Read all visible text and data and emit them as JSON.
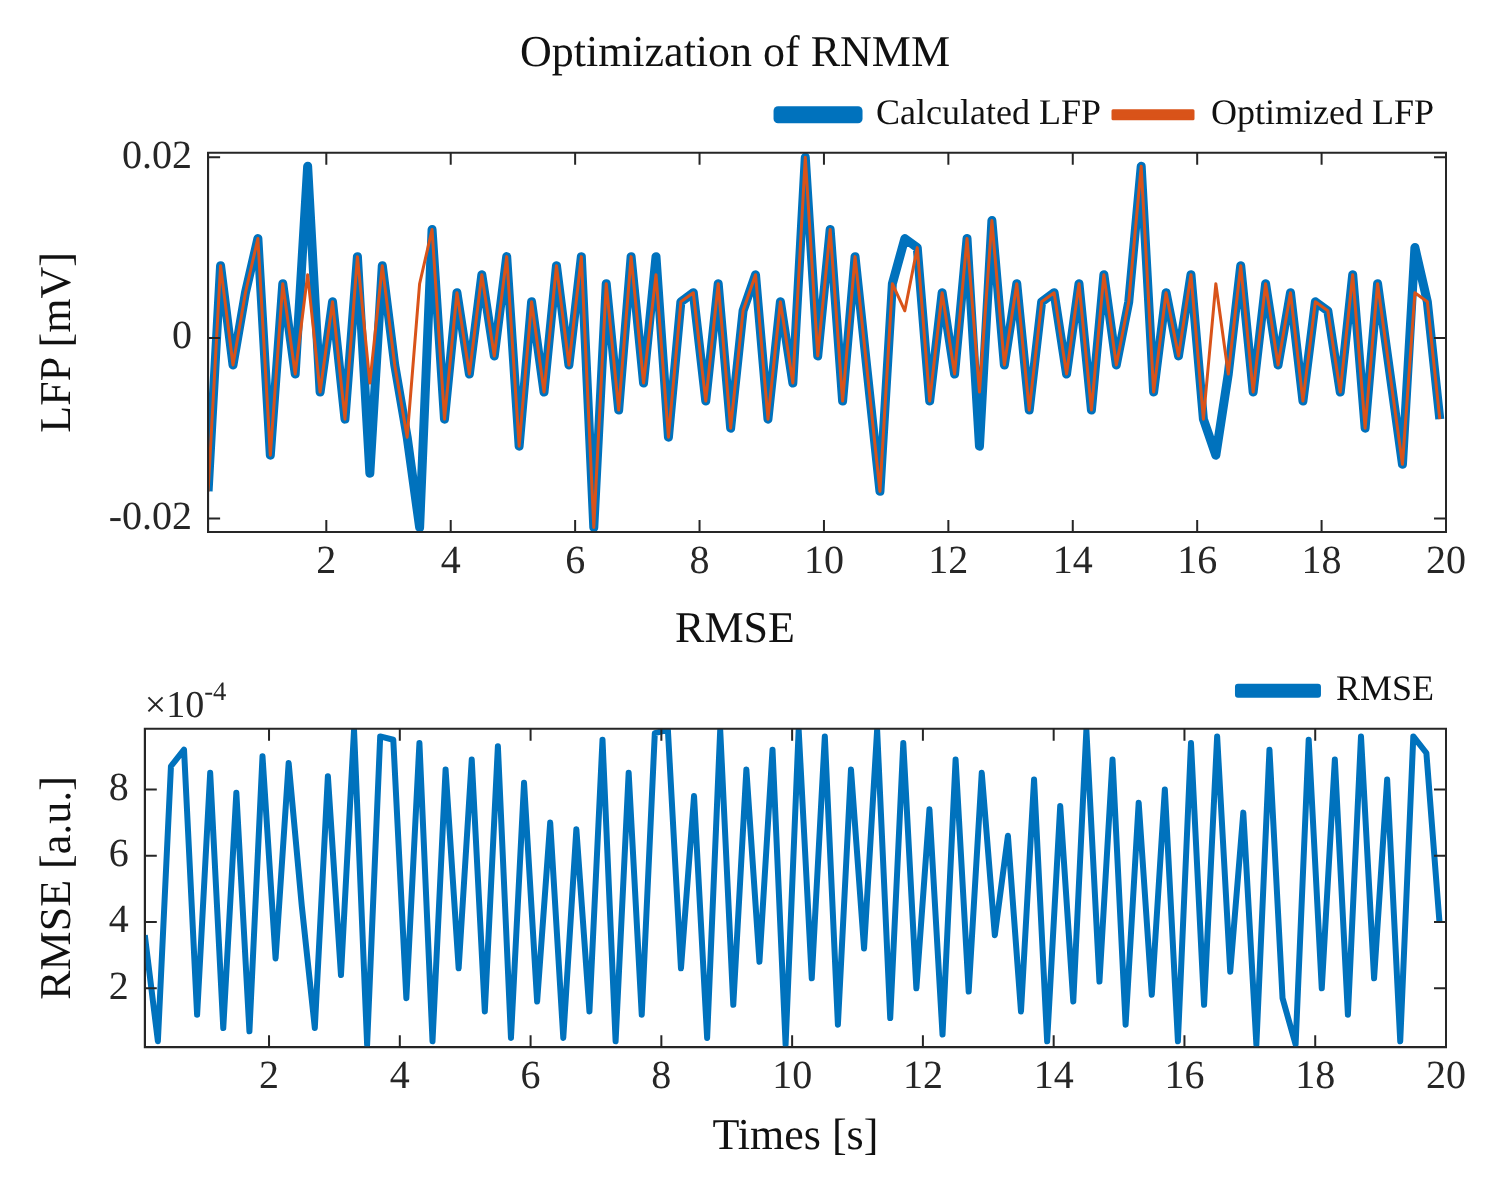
{
  "chart_data": [
    {
      "type": "line",
      "title": "Optimization of RNMM",
      "ylabel": "LFP [mV]",
      "x": [
        0.1,
        0.3,
        0.5,
        0.7,
        0.9,
        1.1,
        1.3,
        1.5,
        1.7,
        1.9,
        2.1,
        2.3,
        2.5,
        2.7,
        2.9,
        3.1,
        3.3,
        3.5,
        3.7,
        3.9,
        4.1,
        4.3,
        4.5,
        4.7,
        4.9,
        5.1,
        5.3,
        5.5,
        5.7,
        5.9,
        6.1,
        6.3,
        6.5,
        6.7,
        6.9,
        7.1,
        7.3,
        7.5,
        7.7,
        7.9,
        8.1,
        8.3,
        8.5,
        8.7,
        8.9,
        9.1,
        9.3,
        9.5,
        9.7,
        9.9,
        10.1,
        10.3,
        10.5,
        10.7,
        10.9,
        11.1,
        11.3,
        11.5,
        11.7,
        11.9,
        12.1,
        12.3,
        12.5,
        12.7,
        12.9,
        13.1,
        13.3,
        13.5,
        13.7,
        13.9,
        14.1,
        14.3,
        14.5,
        14.7,
        14.9,
        15.1,
        15.3,
        15.5,
        15.7,
        15.9,
        16.1,
        16.3,
        16.5,
        16.7,
        16.9,
        17.1,
        17.3,
        17.5,
        17.7,
        17.9,
        18.1,
        18.3,
        18.5,
        18.7,
        18.9,
        19.1,
        19.3,
        19.5,
        19.7,
        19.9
      ],
      "series": [
        {
          "name": "Calculated LFP",
          "color": "#0072bd",
          "values": [
            -0.017,
            0.008,
            -0.003,
            0.005,
            0.011,
            -0.013,
            0.006,
            -0.004,
            0.019,
            -0.006,
            0.004,
            -0.009,
            0.009,
            -0.015,
            0.008,
            -0.003,
            -0.011,
            -0.021,
            0.012,
            -0.009,
            0.005,
            -0.004,
            0.007,
            -0.002,
            0.009,
            -0.012,
            0.004,
            -0.006,
            0.008,
            -0.003,
            0.009,
            -0.021,
            0.006,
            -0.008,
            0.009,
            -0.005,
            0.009,
            -0.011,
            0.004,
            0.005,
            -0.007,
            0.006,
            -0.01,
            0.003,
            0.007,
            -0.009,
            0.004,
            -0.005,
            0.02,
            -0.002,
            0.012,
            -0.007,
            0.009,
            -0.004,
            -0.017,
            0.006,
            0.011,
            0.01,
            -0.007,
            0.005,
            -0.004,
            0.011,
            -0.012,
            0.013,
            -0.003,
            0.006,
            -0.008,
            0.004,
            0.005,
            -0.004,
            0.006,
            -0.008,
            0.007,
            -0.003,
            0.004,
            0.019,
            -0.006,
            0.005,
            -0.002,
            0.007,
            -0.009,
            -0.013,
            -0.004,
            0.008,
            -0.006,
            0.006,
            -0.003,
            0.005,
            -0.007,
            0.004,
            0.003,
            -0.006,
            0.007,
            -0.01,
            0.006,
            -0.004,
            -0.014,
            0.01,
            0.004,
            -0.009
          ]
        },
        {
          "name": "Optimized LFP",
          "color": "#d95319",
          "values": [
            -0.017,
            0.008,
            -0.003,
            0.005,
            0.011,
            -0.013,
            0.006,
            -0.004,
            0.007,
            -0.006,
            0.004,
            -0.009,
            0.009,
            -0.005,
            0.008,
            -0.003,
            -0.011,
            0.006,
            0.012,
            -0.009,
            0.005,
            -0.004,
            0.007,
            -0.002,
            0.009,
            -0.012,
            0.004,
            -0.006,
            0.008,
            -0.003,
            0.009,
            -0.021,
            0.006,
            -0.008,
            0.009,
            -0.005,
            0.007,
            -0.011,
            0.004,
            0.005,
            -0.007,
            0.006,
            -0.01,
            0.003,
            0.007,
            -0.009,
            0.004,
            -0.005,
            0.02,
            -0.002,
            0.012,
            -0.007,
            0.009,
            -0.004,
            -0.017,
            0.006,
            0.003,
            0.01,
            -0.007,
            0.005,
            -0.004,
            0.011,
            -0.006,
            0.013,
            -0.003,
            0.006,
            -0.008,
            0.004,
            0.005,
            -0.004,
            0.006,
            -0.008,
            0.007,
            -0.003,
            0.004,
            0.019,
            -0.006,
            0.005,
            -0.002,
            0.007,
            -0.009,
            0.006,
            -0.004,
            0.008,
            -0.006,
            0.006,
            -0.003,
            0.005,
            -0.007,
            0.004,
            0.003,
            -0.006,
            0.007,
            -0.01,
            0.006,
            -0.004,
            -0.014,
            0.005,
            0.004,
            -0.009
          ]
        }
      ],
      "xlim": [
        0.1,
        20
      ],
      "xticks": [
        2,
        4,
        6,
        8,
        10,
        12,
        14,
        16,
        18,
        20
      ],
      "ylim": [
        -0.0215,
        0.0205
      ],
      "yticks": [
        -0.02,
        0,
        0.02
      ],
      "legend": "top right"
    },
    {
      "type": "line",
      "title": "RMSE",
      "xlabel": "Times [s]",
      "ylabel": "RMSE [a.u.]",
      "annotations": [
        "×10$^{-4}$"
      ],
      "x": [
        0.1,
        0.3,
        0.5,
        0.7,
        0.9,
        1.1,
        1.3,
        1.5,
        1.7,
        1.9,
        2.1,
        2.3,
        2.5,
        2.7,
        2.9,
        3.1,
        3.3,
        3.5,
        3.7,
        3.9,
        4.1,
        4.3,
        4.5,
        4.7,
        4.9,
        5.1,
        5.3,
        5.5,
        5.7,
        5.9,
        6.1,
        6.3,
        6.5,
        6.7,
        6.9,
        7.1,
        7.3,
        7.5,
        7.7,
        7.9,
        8.1,
        8.3,
        8.5,
        8.7,
        8.9,
        9.1,
        9.3,
        9.5,
        9.7,
        9.9,
        10.1,
        10.3,
        10.5,
        10.7,
        10.9,
        11.1,
        11.3,
        11.5,
        11.7,
        11.9,
        12.1,
        12.3,
        12.5,
        12.7,
        12.9,
        13.1,
        13.3,
        13.5,
        13.7,
        13.9,
        14.1,
        14.3,
        14.5,
        14.7,
        14.9,
        15.1,
        15.3,
        15.5,
        15.7,
        15.9,
        16.1,
        16.3,
        16.5,
        16.7,
        16.9,
        17.1,
        17.3,
        17.5,
        17.7,
        17.9,
        18.1,
        18.3,
        18.5,
        18.7,
        18.9,
        19.1,
        19.3,
        19.5,
        19.7,
        19.9
      ],
      "series": [
        {
          "name": "RMSE",
          "color": "#0072bd",
          "values": [
            3.6,
            0.4,
            8.7,
            9.2,
            1.2,
            8.5,
            0.8,
            7.9,
            0.7,
            9.0,
            2.9,
            8.8,
            4.5,
            0.8,
            8.4,
            2.4,
            9.8,
            0.3,
            9.6,
            9.5,
            1.7,
            9.4,
            0.4,
            8.6,
            2.6,
            8.9,
            1.3,
            9.3,
            0.5,
            8.2,
            1.6,
            7.0,
            0.5,
            6.8,
            1.3,
            9.5,
            0.4,
            8.5,
            1.2,
            9.7,
            9.8,
            2.6,
            7.8,
            0.5,
            9.8,
            1.5,
            8.6,
            2.8,
            9.2,
            0.3,
            9.8,
            2.3,
            9.6,
            0.9,
            8.6,
            3.2,
            9.8,
            1.1,
            9.4,
            2.0,
            7.4,
            0.6,
            8.9,
            1.9,
            8.5,
            3.6,
            6.6,
            1.3,
            8.3,
            0.4,
            7.5,
            1.6,
            9.8,
            2.2,
            8.9,
            0.9,
            7.6,
            1.8,
            8.0,
            0.4,
            9.4,
            1.5,
            9.6,
            2.5,
            7.3,
            0.3,
            9.2,
            1.7,
            0.3,
            9.5,
            2.0,
            8.9,
            1.2,
            9.6,
            2.3,
            8.3,
            0.4,
            9.6,
            9.1,
            4.0
          ]
        }
      ],
      "xlim": [
        0.1,
        20
      ],
      "xticks": [
        2,
        4,
        6,
        8,
        10,
        12,
        14,
        16,
        18,
        20
      ],
      "ylim": [
        0.22,
        9.83
      ],
      "yticks": [
        2,
        4,
        6,
        8
      ],
      "legend": "top right"
    }
  ]
}
